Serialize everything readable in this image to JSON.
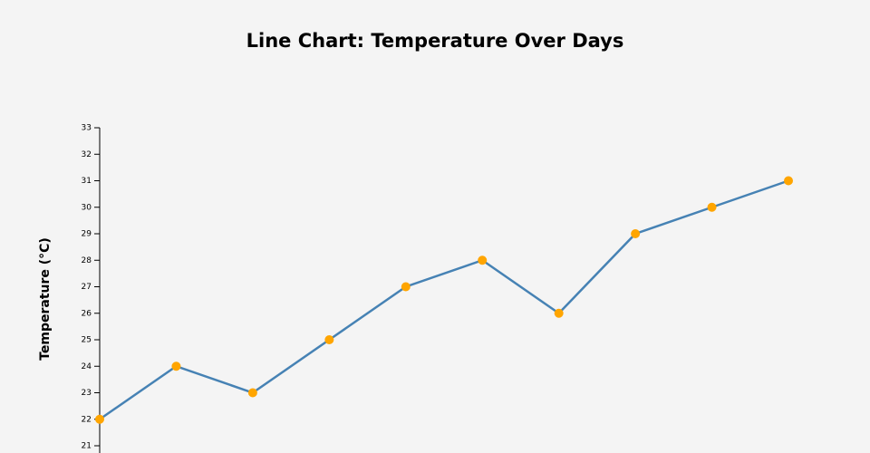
{
  "chart_data": {
    "type": "line",
    "title": "Line Chart: Temperature Over Days",
    "y_label": "Temperature (°C)",
    "categories": [
      null,
      null,
      null,
      null,
      null,
      null,
      null,
      null,
      null,
      null
    ],
    "series": [
      {
        "name": null,
        "color": "#4682b4",
        "marker_color": "#ffa500",
        "values": [
          22,
          24,
          23,
          25,
          27,
          28,
          26,
          29,
          30,
          31
        ]
      }
    ],
    "ylim": [
      20,
      33
    ],
    "yticks": [
      21,
      22,
      23,
      24,
      25,
      26,
      27,
      28,
      29,
      30,
      31,
      32,
      33
    ],
    "grid": false
  }
}
